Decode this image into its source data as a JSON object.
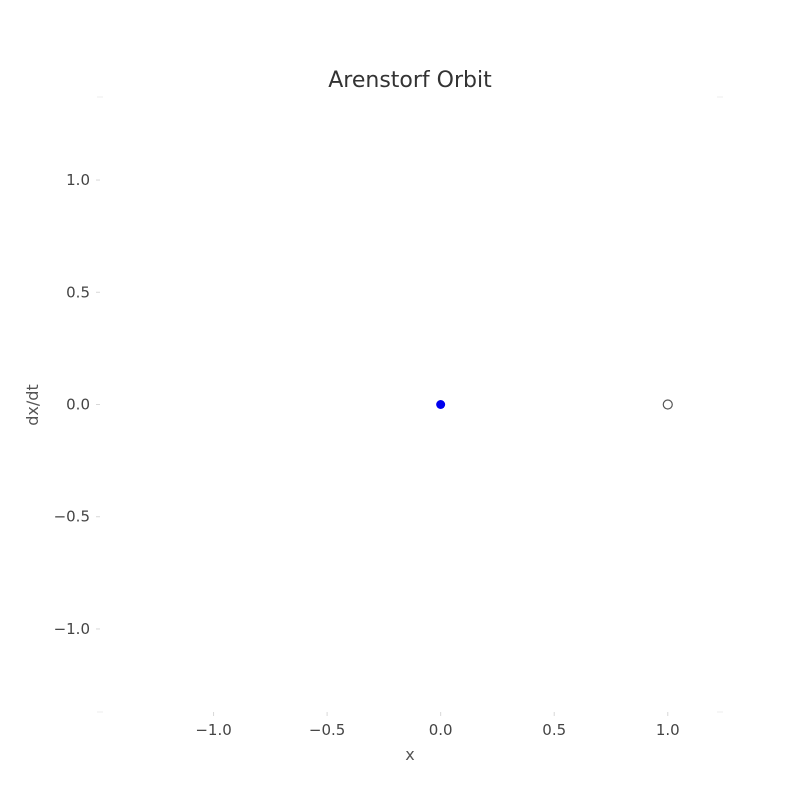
{
  "chart_data": {
    "type": "scatter",
    "title": "Arenstorf Orbit",
    "xlabel": "x",
    "ylabel": "dx/dt",
    "xlim": [
      -1.5,
      1.23
    ],
    "ylim": [
      -1.37,
      1.37
    ],
    "x_ticks": [
      -1.0,
      -0.5,
      0.0,
      0.5,
      1.0
    ],
    "x_tick_labels": [
      "−1.0",
      "−0.5",
      "0.0",
      "0.5",
      "1.0"
    ],
    "y_ticks": [
      1.0,
      0.5,
      0.0,
      -0.5,
      -1.0
    ],
    "y_tick_labels": [
      "1.0",
      "0.5",
      "0.0",
      "−0.5",
      "−1.0"
    ],
    "grid": false,
    "series": [
      {
        "points": [
          {
            "x": 0.0,
            "y": 0.0
          }
        ],
        "marker": "filled-circle",
        "color": "#0000ee"
      },
      {
        "points": [
          {
            "x": 1.0,
            "y": 0.0
          }
        ],
        "marker": "open-circle",
        "color": "#555555"
      }
    ]
  }
}
